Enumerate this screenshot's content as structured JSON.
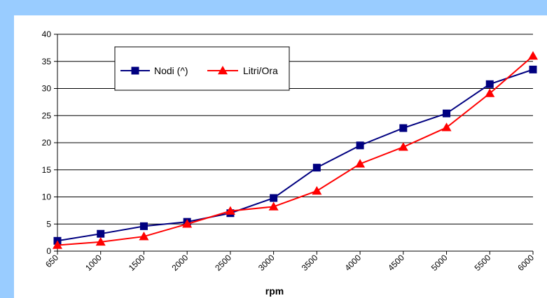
{
  "chart_data": {
    "type": "line",
    "title": "",
    "xlabel": "rpm",
    "ylabel": "",
    "categories": [
      "650",
      "1000",
      "1500",
      "2000",
      "2500",
      "3000",
      "3500",
      "4000",
      "4500",
      "5000",
      "5500",
      "6000"
    ],
    "ylim": [
      0,
      40
    ],
    "yticks": [
      0,
      5,
      10,
      15,
      20,
      25,
      30,
      35,
      40
    ],
    "grid": "horizontal",
    "legend_position": "top-left",
    "series": [
      {
        "name": "Nodi (^)",
        "color": "#000080",
        "marker": "square",
        "values": [
          1.9,
          3.2,
          4.6,
          5.4,
          7.0,
          9.8,
          15.4,
          19.5,
          22.7,
          25.4,
          30.8,
          33.5
        ]
      },
      {
        "name": "Litri/Ora",
        "color": "#ff0000",
        "marker": "triangle",
        "values": [
          1.1,
          1.7,
          2.7,
          5.0,
          7.4,
          8.2,
          11.1,
          16.1,
          19.2,
          22.8,
          29.1,
          36.0
        ]
      }
    ],
    "colors": {
      "frame": "#99ccff",
      "plot_background": "#ffffff",
      "gridline": "#000000"
    }
  }
}
